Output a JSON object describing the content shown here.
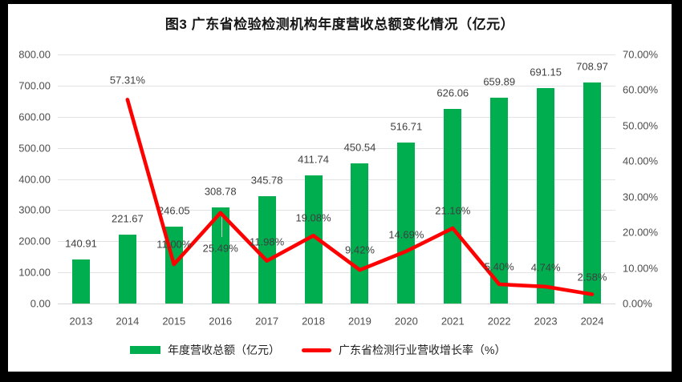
{
  "title": "图3 广东省检验检测机构年度营收总额变化情况（亿元）",
  "colors": {
    "bar": "#00ae50",
    "line": "#ff0000",
    "gridline": "#e3e3e3",
    "frame": "#000000",
    "axis_text": "#4d4d4d"
  },
  "chart_data": {
    "type": "bar",
    "subtype": "bar+line-combo",
    "title": "图3 广东省检验检测机构年度营收总额变化情况（亿元）",
    "categories": [
      "2013",
      "2014",
      "2015",
      "2016",
      "2017",
      "2018",
      "2019",
      "2020",
      "2021",
      "2022",
      "2023",
      "2024"
    ],
    "series": [
      {
        "name": "年度营收总额（亿元）",
        "type": "bar",
        "axis": "left",
        "color": "#00ae50",
        "values": [
          140.91,
          221.67,
          246.05,
          308.78,
          345.78,
          411.74,
          450.54,
          516.71,
          626.06,
          659.89,
          691.15,
          708.97
        ],
        "labels": [
          "140.91",
          "221.67",
          "246.05",
          "308.78",
          "345.78",
          "411.74",
          "450.54",
          "516.71",
          "626.06",
          "659.89",
          "691.15",
          "708.97"
        ]
      },
      {
        "name": "广东省检测行业营收增长率（%）",
        "type": "line",
        "axis": "right",
        "color": "#ff0000",
        "x": [
          "2014",
          "2015",
          "2016",
          "2017",
          "2018",
          "2019",
          "2020",
          "2021",
          "2022",
          "2023",
          "2024"
        ],
        "values": [
          57.31,
          11.0,
          25.49,
          11.98,
          19.08,
          9.42,
          14.69,
          21.16,
          5.4,
          4.74,
          2.58
        ],
        "labels": [
          "57.31%",
          "11.00%",
          "25.49%",
          "11.98%",
          "19.08%",
          "9.42%",
          "14.69%",
          "21.16%",
          "5.40%",
          "4.74%",
          "2.58%"
        ]
      }
    ],
    "left_axis": {
      "min": 0,
      "max": 800,
      "step": 100,
      "ticks": [
        "800.00",
        "700.00",
        "600.00",
        "500.00",
        "400.00",
        "300.00",
        "200.00",
        "100.00",
        "0.00"
      ]
    },
    "right_axis": {
      "min": 0,
      "max": 70,
      "step": 10,
      "ticks": [
        "70.00%",
        "60.00%",
        "50.00%",
        "40.00%",
        "30.00%",
        "20.00%",
        "10.00%",
        "0.00%"
      ]
    },
    "grid": true,
    "legend_position": "bottom"
  },
  "legend": {
    "items": [
      {
        "label": "年度营收总额（亿元）",
        "swatch": "bar",
        "color": "#00ae50"
      },
      {
        "label": "广东省检测行业营收增长率（%）",
        "swatch": "line",
        "color": "#ff0000"
      }
    ]
  }
}
